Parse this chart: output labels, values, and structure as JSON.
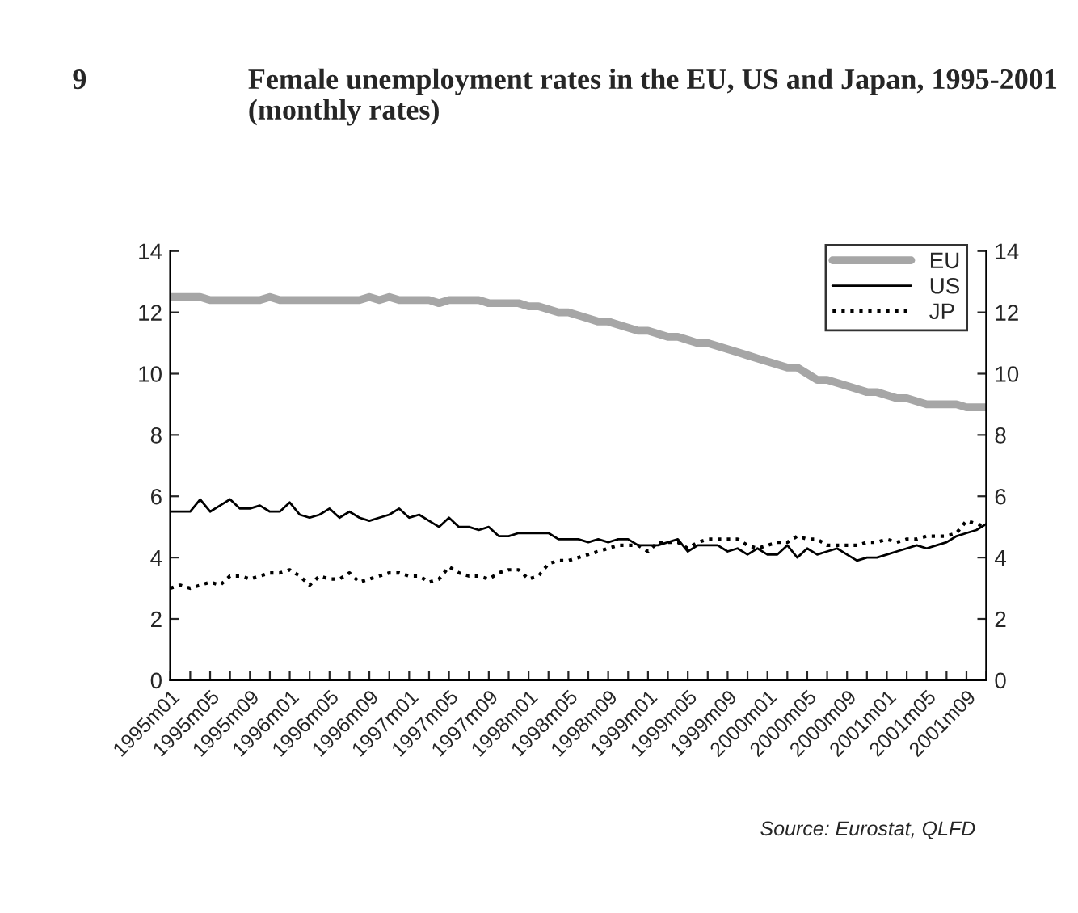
{
  "chart_data": {
    "type": "line",
    "title": "Female unemployment rates in the EU, US and Japan, 1995-2001 (monthly rates)",
    "annotations": [
      "9",
      "Source: Eurostat, QLFD"
    ],
    "categories": [
      "1995m01",
      null,
      null,
      null,
      "1995m05",
      null,
      null,
      null,
      "1995m09",
      null,
      null,
      null,
      "1996m01",
      null,
      null,
      null,
      "1996m05",
      null,
      null,
      null,
      "1996m09",
      null,
      null,
      null,
      "1997m01",
      null,
      null,
      null,
      "1997m05",
      null,
      null,
      null,
      "1997m09",
      null,
      null,
      null,
      "1998m01",
      null,
      null,
      null,
      "1998m05",
      null,
      null,
      null,
      "1998m09",
      null,
      null,
      null,
      "1999m01",
      null,
      null,
      null,
      "1999m05",
      null,
      null,
      null,
      "1999m09",
      null,
      null,
      null,
      "2000m01",
      null,
      null,
      null,
      "2000m05",
      null,
      null,
      null,
      "2000m09",
      null,
      null,
      null,
      "2001m01",
      null,
      null,
      null,
      "2001m05",
      null,
      null,
      null,
      "2001m09",
      null,
      null
    ],
    "series": [
      {
        "name": "EU",
        "color": "#a6a6a6",
        "line_style": "solid",
        "values": [
          12.5,
          12.5,
          12.5,
          12.5,
          12.4,
          12.4,
          12.4,
          12.4,
          12.4,
          12.4,
          12.5,
          12.4,
          12.4,
          12.4,
          12.4,
          12.4,
          12.4,
          12.4,
          12.4,
          12.4,
          12.5,
          12.4,
          12.5,
          12.4,
          12.4,
          12.4,
          12.4,
          12.3,
          12.4,
          12.4,
          12.4,
          12.4,
          12.3,
          12.3,
          12.3,
          12.3,
          12.2,
          12.2,
          12.1,
          12.0,
          12.0,
          11.9,
          11.8,
          11.7,
          11.7,
          11.6,
          11.5,
          11.4,
          11.4,
          11.3,
          11.2,
          11.2,
          11.1,
          11.0,
          11.0,
          10.9,
          10.8,
          10.7,
          10.6,
          10.5,
          10.4,
          10.3,
          10.2,
          10.2,
          10.0,
          9.8,
          9.8,
          9.7,
          9.6,
          9.5,
          9.4,
          9.4,
          9.3,
          9.2,
          9.2,
          9.1,
          9.0,
          9.0,
          9.0,
          9.0,
          8.9,
          8.9,
          8.9
        ]
      },
      {
        "name": "US",
        "color": "#000000",
        "line_style": "solid",
        "values": [
          5.5,
          5.5,
          5.5,
          5.9,
          5.5,
          5.7,
          5.9,
          5.6,
          5.6,
          5.7,
          5.5,
          5.5,
          5.8,
          5.4,
          5.3,
          5.4,
          5.6,
          5.3,
          5.5,
          5.3,
          5.2,
          5.3,
          5.4,
          5.6,
          5.3,
          5.4,
          5.2,
          5.0,
          5.3,
          5.0,
          5.0,
          4.9,
          5.0,
          4.7,
          4.7,
          4.8,
          4.8,
          4.8,
          4.8,
          4.6,
          4.6,
          4.6,
          4.5,
          4.6,
          4.5,
          4.6,
          4.6,
          4.4,
          4.4,
          4.4,
          4.5,
          4.6,
          4.2,
          4.4,
          4.4,
          4.4,
          4.2,
          4.3,
          4.1,
          4.3,
          4.1,
          4.1,
          4.4,
          4.0,
          4.3,
          4.1,
          4.2,
          4.3,
          4.1,
          3.9,
          4.0,
          4.0,
          4.1,
          4.2,
          4.3,
          4.4,
          4.3,
          4.4,
          4.5,
          4.7,
          4.8,
          4.9,
          5.1
        ]
      },
      {
        "name": "JP",
        "color": "#000000",
        "line_style": "dotted",
        "values": [
          3.0,
          3.1,
          3.0,
          3.1,
          3.2,
          3.1,
          3.4,
          3.4,
          3.3,
          3.4,
          3.5,
          3.5,
          3.6,
          3.4,
          3.1,
          3.4,
          3.3,
          3.3,
          3.5,
          3.2,
          3.3,
          3.4,
          3.5,
          3.5,
          3.4,
          3.4,
          3.2,
          3.3,
          3.7,
          3.5,
          3.4,
          3.4,
          3.3,
          3.5,
          3.6,
          3.6,
          3.3,
          3.4,
          3.8,
          3.9,
          3.9,
          4.0,
          4.1,
          4.2,
          4.3,
          4.4,
          4.4,
          4.4,
          4.2,
          4.5,
          4.5,
          4.5,
          4.3,
          4.5,
          4.6,
          4.6,
          4.6,
          4.6,
          4.4,
          4.3,
          4.4,
          4.5,
          4.5,
          4.7,
          4.6,
          4.6,
          4.4,
          4.4,
          4.4,
          4.4,
          4.5,
          4.5,
          4.6,
          4.5,
          4.6,
          4.6,
          4.7,
          4.7,
          4.7,
          4.8,
          5.2,
          5.1,
          5.0
        ]
      }
    ],
    "ylim": [
      0,
      14
    ],
    "yticks": [
      0,
      2,
      4,
      6,
      8,
      10,
      12,
      14
    ],
    "y2lim": [
      0,
      14
    ],
    "y2ticks": [
      0,
      2,
      4,
      6,
      8,
      10,
      12,
      14
    ],
    "legend": "top right",
    "grid": false
  }
}
